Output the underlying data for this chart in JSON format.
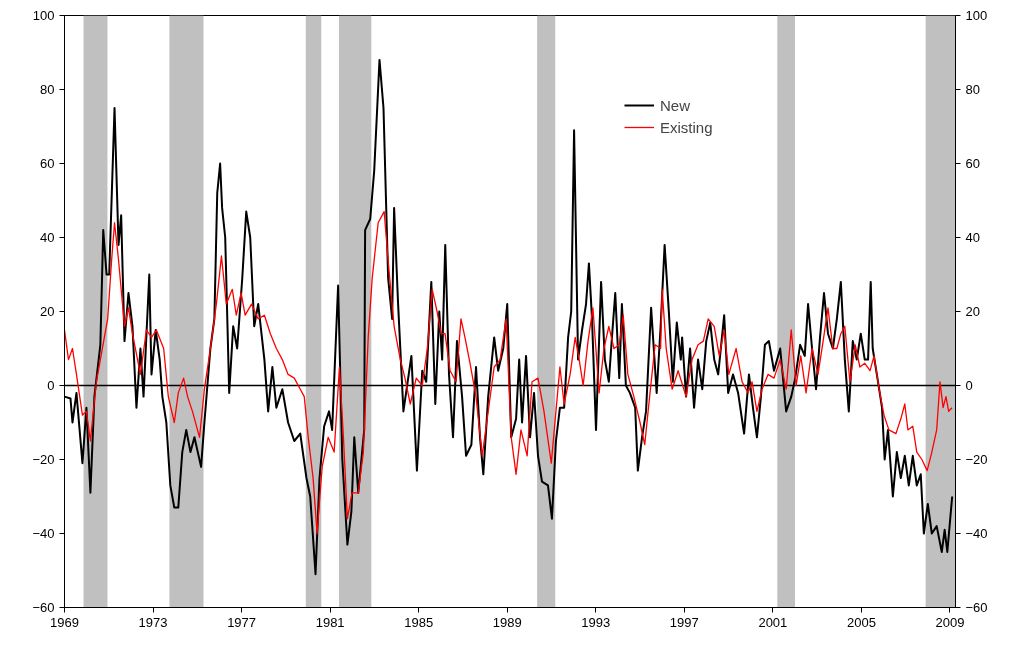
{
  "chart_data": {
    "type": "line",
    "xlim": [
      1969,
      2009.25
    ],
    "xticks": [
      1969,
      1973,
      1977,
      1981,
      1985,
      1989,
      1993,
      1997,
      2001,
      2005,
      2009
    ],
    "ylim": [
      -60,
      100
    ],
    "yticks": [
      -60,
      -40,
      -20,
      0,
      20,
      40,
      60,
      80,
      100
    ],
    "y2lim": [
      -60,
      100
    ],
    "y2ticks": [
      -60,
      -40,
      -20,
      0,
      20,
      40,
      60,
      80,
      100
    ],
    "grid": false,
    "legend": "top right",
    "marker": "none",
    "line_style": "solid",
    "ref_lines": [
      {
        "axis": "y",
        "value": 0,
        "color": "#000000"
      }
    ],
    "bands": [
      {
        "axis": "x",
        "from": 1969.86,
        "to": 1970.94,
        "color": "#c0c0c0"
      },
      {
        "axis": "x",
        "from": 1973.74,
        "to": 1975.28,
        "color": "#c0c0c0"
      },
      {
        "axis": "x",
        "from": 1979.9,
        "to": 1980.6,
        "color": "#c0c0c0"
      },
      {
        "axis": "x",
        "from": 1981.4,
        "to": 1982.86,
        "color": "#c0c0c0"
      },
      {
        "axis": "x",
        "from": 1990.35,
        "to": 1991.17,
        "color": "#c0c0c0"
      },
      {
        "axis": "x",
        "from": 2001.2,
        "to": 2002.0,
        "color": "#c0c0c0"
      },
      {
        "axis": "x",
        "from": 2007.9,
        "to": 2009.25,
        "color": "#c0c0c0"
      }
    ],
    "series": [
      {
        "name": "New",
        "color": "#000000",
        "x": [
          1969.0,
          1969.27,
          1969.36,
          1969.54,
          1969.81,
          1969.99,
          1970.17,
          1970.35,
          1970.62,
          1970.75,
          1970.9,
          1971.02,
          1971.26,
          1971.44,
          1971.56,
          1971.71,
          1971.89,
          1972.07,
          1972.25,
          1972.43,
          1972.57,
          1972.83,
          1972.93,
          1973.12,
          1973.3,
          1973.42,
          1973.6,
          1973.78,
          1973.96,
          1974.14,
          1974.32,
          1974.5,
          1974.69,
          1974.87,
          1975.17,
          1975.32,
          1975.59,
          1975.77,
          1975.9,
          1976.03,
          1976.12,
          1976.26,
          1976.44,
          1976.62,
          1976.8,
          1977.03,
          1977.21,
          1977.39,
          1977.57,
          1977.75,
          1978.03,
          1978.2,
          1978.39,
          1978.57,
          1978.84,
          1979.1,
          1979.38,
          1979.65,
          1979.93,
          1980.1,
          1980.34,
          1980.52,
          1980.73,
          1980.95,
          1981.09,
          1981.36,
          1981.55,
          1981.78,
          1981.96,
          1982.09,
          1982.27,
          1982.54,
          1982.58,
          1982.81,
          1982.99,
          1983.23,
          1983.41,
          1983.62,
          1983.8,
          1983.89,
          1984.07,
          1984.31,
          1984.67,
          1984.92,
          1985.16,
          1985.34,
          1985.57,
          1985.75,
          1985.93,
          1986.06,
          1986.2,
          1986.37,
          1986.55,
          1986.73,
          1986.96,
          1987.14,
          1987.38,
          1987.59,
          1987.77,
          1987.92,
          1988.14,
          1988.41,
          1988.59,
          1988.82,
          1989.0,
          1989.18,
          1989.4,
          1989.54,
          1989.67,
          1989.85,
          1990.03,
          1990.21,
          1990.39,
          1990.57,
          1990.84,
          1991.02,
          1991.2,
          1991.38,
          1991.57,
          1991.75,
          1991.89,
          1992.02,
          1992.2,
          1992.38,
          1992.56,
          1992.69,
          1992.83,
          1993.01,
          1993.24,
          1993.41,
          1993.59,
          1993.73,
          1993.88,
          1994.06,
          1994.18,
          1994.36,
          1994.54,
          1994.78,
          1994.9,
          1995.09,
          1995.27,
          1995.5,
          1995.75,
          1995.93,
          1996.11,
          1996.3,
          1996.48,
          1996.66,
          1996.84,
          1996.9,
          1997.08,
          1997.26,
          1997.44,
          1997.62,
          1997.81,
          1997.99,
          1998.17,
          1998.35,
          1998.53,
          1998.8,
          1998.98,
          1999.2,
          1999.43,
          1999.7,
          1999.92,
          2000.1,
          2000.28,
          2000.46,
          2000.64,
          2000.82,
          2001.05,
          2001.33,
          2001.6,
          2001.83,
          2002.01,
          2002.23,
          2002.44,
          2002.59,
          2002.77,
          2002.95,
          2003.13,
          2003.31,
          2003.49,
          2003.71,
          2003.89,
          2004.07,
          2004.25,
          2004.43,
          2004.61,
          2004.79,
          2004.97,
          2005.15,
          2005.3,
          2005.42,
          2005.51,
          2005.75,
          2005.93,
          2006.05,
          2006.2,
          2006.42,
          2006.6,
          2006.78,
          2006.96,
          2007.14,
          2007.32,
          2007.5,
          2007.68,
          2007.82,
          2008.0,
          2008.18,
          2008.4,
          2008.63,
          2008.76,
          2008.88,
          2009.1
        ],
        "values": [
          -3,
          -3.5,
          -10,
          -2,
          -21,
          -6,
          -29,
          -3,
          11,
          42,
          30,
          30,
          75,
          38,
          46,
          12,
          25,
          16,
          -6,
          10,
          -3,
          30,
          3,
          15,
          7,
          -3,
          -10,
          -27,
          -33,
          -33,
          -18,
          -12,
          -18,
          -14,
          -22,
          -10,
          10,
          18,
          52,
          60,
          48,
          40,
          -2,
          16,
          10,
          29,
          47,
          40,
          16,
          22,
          7,
          -7,
          5,
          -6,
          -1,
          -10,
          -15,
          -13,
          -25,
          -30,
          -51,
          -25,
          -11,
          -7,
          -12,
          27,
          -20,
          -43,
          -34,
          -14,
          -29,
          -12,
          42,
          45,
          58,
          88,
          75,
          29,
          18,
          48,
          22,
          -7,
          8,
          -23,
          4,
          1,
          28,
          -5,
          20,
          7,
          38,
          3,
          -14,
          12,
          -3,
          -19,
          -16,
          5,
          -14,
          -24,
          -3,
          13,
          4,
          10,
          22,
          -14,
          -9,
          7,
          -10,
          8,
          -14,
          -2,
          -19,
          -26,
          -27,
          -36,
          -15,
          -6,
          -6,
          13,
          20,
          69,
          7,
          15,
          22,
          33,
          18,
          -12,
          28,
          7,
          1,
          13,
          25,
          2,
          22,
          0,
          -2,
          -6,
          -23,
          -14,
          -7,
          21,
          -2,
          16,
          38,
          20,
          1,
          17,
          7,
          13,
          -3,
          10,
          -6,
          7,
          -1,
          12,
          17,
          7,
          3,
          19,
          -2,
          3,
          -2,
          -13,
          3,
          -6,
          -14,
          -3,
          11,
          12,
          4,
          10,
          -7,
          -3,
          2,
          11,
          8,
          22,
          10,
          -1,
          13,
          25,
          14,
          10,
          18,
          28,
          7,
          -7,
          12,
          7,
          14,
          7,
          7,
          28,
          10,
          1,
          -6,
          -20,
          -12,
          -30,
          -18,
          -25,
          -19,
          -27,
          -19,
          -27,
          -24,
          -40,
          -32,
          -40,
          -38,
          -45,
          -39,
          -45,
          -30
        ]
      },
      {
        "name": "Existing",
        "color": "#ff0000",
        "x": [
          1969.0,
          1969.18,
          1969.36,
          1969.54,
          1969.81,
          1969.99,
          1970.17,
          1970.44,
          1970.62,
          1970.77,
          1970.95,
          1971.13,
          1971.26,
          1971.44,
          1971.71,
          1971.89,
          1972.07,
          1972.43,
          1972.7,
          1972.93,
          1973.15,
          1973.48,
          1973.69,
          1973.96,
          1974.14,
          1974.38,
          1974.56,
          1974.78,
          1975.1,
          1975.32,
          1975.59,
          1975.86,
          1976.09,
          1976.31,
          1976.58,
          1976.76,
          1976.98,
          1977.16,
          1977.45,
          1977.75,
          1978.03,
          1978.3,
          1978.57,
          1978.84,
          1979.1,
          1979.38,
          1979.65,
          1979.83,
          1980.01,
          1980.23,
          1980.41,
          1980.64,
          1980.91,
          1981.18,
          1981.42,
          1981.6,
          1981.78,
          1981.99,
          1982.27,
          1982.5,
          1982.72,
          1982.9,
          1983.17,
          1983.44,
          1983.66,
          1983.89,
          1984.17,
          1984.38,
          1984.62,
          1984.89,
          1985.16,
          1985.39,
          1985.61,
          1985.83,
          1986.01,
          1986.19,
          1986.42,
          1986.69,
          1986.91,
          1987.09,
          1987.32,
          1987.59,
          1987.87,
          1988.14,
          1988.41,
          1988.68,
          1988.95,
          1989.18,
          1989.4,
          1989.62,
          1989.9,
          1990.12,
          1990.39,
          1990.66,
          1990.99,
          1991.2,
          1991.38,
          1991.57,
          1991.84,
          1992.07,
          1992.25,
          1992.43,
          1992.65,
          1992.87,
          1993.15,
          1993.37,
          1993.59,
          1993.82,
          1994.06,
          1994.24,
          1994.45,
          1994.72,
          1995.0,
          1995.21,
          1995.45,
          1995.68,
          1995.93,
          1996.0,
          1996.18,
          1996.45,
          1996.72,
          1997.08,
          1997.35,
          1997.62,
          1997.86,
          1998.08,
          1998.35,
          1998.58,
          1998.8,
          1999.01,
          1999.34,
          1999.61,
          1999.88,
          2000.06,
          2000.28,
          2000.51,
          2000.78,
          2001.05,
          2001.33,
          2001.6,
          2001.83,
          2002.05,
          2002.26,
          2002.5,
          2002.77,
          2003.04,
          2003.27,
          2003.49,
          2003.71,
          2003.89,
          2004.07,
          2004.25,
          2004.48,
          2004.72,
          2004.93,
          2005.15,
          2005.39,
          2005.57,
          2005.8,
          2006.02,
          2006.24,
          2006.56,
          2006.78,
          2006.96,
          2007.1,
          2007.32,
          2007.5,
          2007.73,
          2007.97,
          2008.18,
          2008.4,
          2008.55,
          2008.69,
          2008.82,
          2008.94,
          2009.09
        ],
        "values": [
          15,
          7,
          10,
          3,
          -8,
          -7,
          -15,
          1,
          7,
          12,
          18,
          34,
          44,
          34,
          16,
          21,
          14,
          3,
          15,
          13,
          15,
          10,
          -3,
          -10,
          -2,
          2,
          -3,
          -7,
          -14,
          -1,
          10,
          22,
          35,
          22,
          26,
          19,
          25,
          19,
          22,
          18,
          19,
          14,
          10,
          7,
          3,
          2,
          -1,
          -3,
          -14,
          -25,
          -40,
          -22,
          -14,
          -18,
          5,
          -14,
          -36,
          -29,
          -29,
          -18,
          13,
          29,
          44,
          47,
          31,
          16,
          7,
          2,
          -5,
          2,
          0,
          10,
          26,
          20,
          14,
          14,
          4,
          1,
          18,
          13,
          6,
          -3,
          -19,
          -7,
          5,
          7,
          18,
          -14,
          -24,
          -12,
          -19,
          1,
          2,
          -7,
          -21,
          -7,
          5,
          -5,
          3,
          13,
          7,
          0,
          12,
          21,
          -2,
          10,
          16,
          10,
          11,
          19,
          3,
          -3,
          -10,
          -16,
          -2,
          11,
          10,
          26,
          10,
          -1,
          4,
          -3,
          7,
          11,
          12,
          18,
          16,
          8,
          15,
          3,
          10,
          1,
          -2,
          1,
          -7,
          -1,
          3,
          2,
          7,
          -1,
          15,
          0,
          8,
          -2,
          10,
          3,
          12,
          21,
          10,
          10,
          14,
          16,
          1,
          11,
          5,
          6,
          4,
          8,
          -1,
          -8,
          -12,
          -13,
          -9,
          -5,
          -12,
          -11,
          -18,
          -20,
          -23,
          -18,
          -12,
          1,
          -6,
          -3,
          -7,
          -6
        ]
      }
    ]
  }
}
